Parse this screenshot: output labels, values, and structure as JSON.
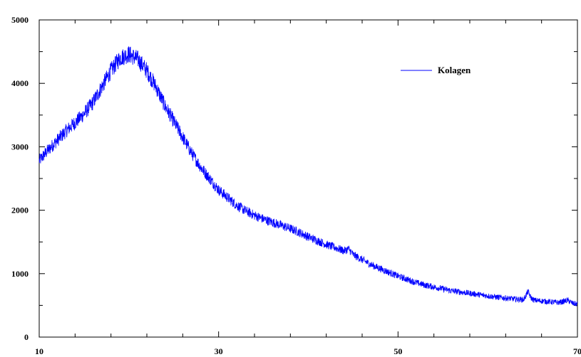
{
  "chart_data": {
    "type": "line",
    "title": "",
    "xlabel": "",
    "ylabel": "",
    "xlim": [
      10,
      70
    ],
    "ylim": [
      0,
      5000
    ],
    "x_ticks": [
      10,
      30,
      50,
      70
    ],
    "y_ticks": [
      0,
      1000,
      2000,
      3000,
      4000,
      5000
    ],
    "x_tick_labels": [
      "10",
      "30",
      "50",
      "70"
    ],
    "y_tick_labels": [
      "0",
      "1000",
      "2000",
      "3000",
      "4000",
      "5000"
    ],
    "grid": false,
    "legend_position": "top-right",
    "series": [
      {
        "name": "Kolagen",
        "color": "#0000ff",
        "x": [
          10,
          11,
          12,
          13,
          14,
          15,
          16,
          17,
          18,
          19,
          20,
          21,
          22,
          23,
          24,
          25,
          26,
          27,
          28,
          29,
          30,
          31,
          32,
          33,
          34,
          35,
          36,
          37,
          38,
          39,
          40,
          41,
          42,
          43,
          44,
          44.5,
          45,
          46,
          47,
          48,
          49,
          50,
          51,
          52,
          53,
          54,
          55,
          56,
          57,
          58,
          59,
          60,
          61,
          62,
          63,
          64,
          64.5,
          64.8,
          65.2,
          66,
          67,
          68,
          68.9,
          69.5,
          70
        ],
        "y": [
          2780,
          2950,
          3100,
          3250,
          3380,
          3520,
          3700,
          3950,
          4200,
          4400,
          4460,
          4380,
          4200,
          3950,
          3650,
          3400,
          3150,
          2900,
          2680,
          2500,
          2320,
          2200,
          2080,
          1990,
          1920,
          1860,
          1810,
          1760,
          1710,
          1650,
          1580,
          1520,
          1460,
          1410,
          1360,
          1390,
          1300,
          1220,
          1140,
          1080,
          1020,
          960,
          910,
          860,
          820,
          790,
          760,
          730,
          710,
          690,
          670,
          650,
          630,
          615,
          600,
          590,
          720,
          620,
          580,
          570,
          555,
          545,
          580,
          530,
          520
        ]
      }
    ]
  }
}
